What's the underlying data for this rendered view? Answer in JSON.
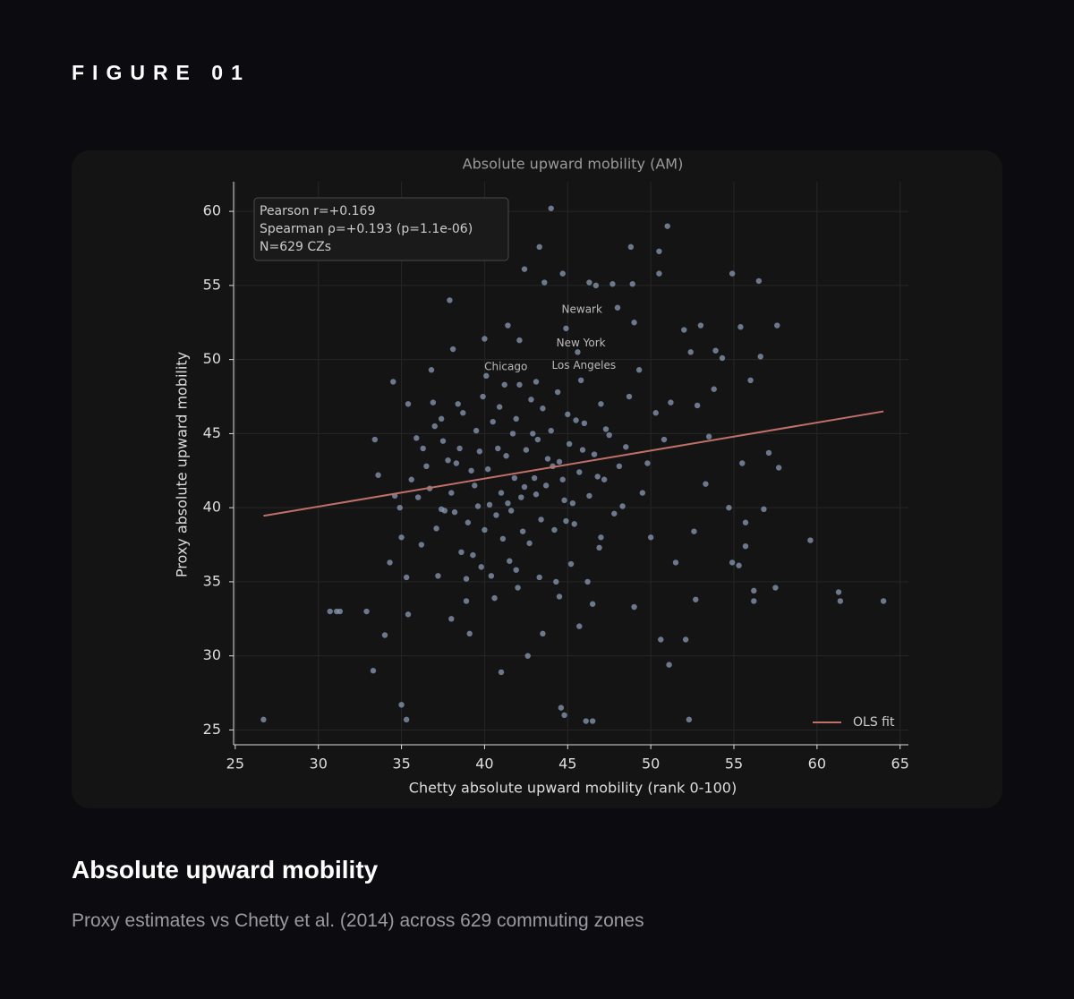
{
  "header": {
    "label": "FIGURE 01"
  },
  "chart_data": {
    "type": "scatter",
    "title": "Absolute upward mobility (AM)",
    "xlabel": "Chetty absolute upward mobility (rank 0-100)",
    "ylabel": "Proxy absolute upward mobility",
    "xlim": [
      24.9,
      65.5
    ],
    "ylim": [
      24,
      62
    ],
    "xticks": [
      25,
      30,
      35,
      40,
      45,
      50,
      55,
      60,
      65
    ],
    "yticks": [
      25,
      30,
      35,
      40,
      45,
      50,
      55,
      60
    ],
    "grid": true,
    "legend": "lower right",
    "stats": [
      "Pearson r=+0.169",
      "Spearman ρ=+0.193 (p=1.1e-06)",
      "N=629 CZs"
    ],
    "points": {
      "color": "#8a9bb5",
      "x": [
        26.7,
        30.7,
        31.1,
        31.3,
        32.9,
        33.3,
        33.4,
        33.6,
        34,
        34.3,
        34.5,
        34.6,
        34.9,
        35,
        35,
        35.3,
        35.3,
        35.4,
        35.4,
        35.6,
        35.9,
        36,
        36.2,
        36.5,
        36.8,
        37,
        37.2,
        37.4,
        37.6,
        37.9,
        38,
        38.1,
        38.3,
        38.4,
        38.6,
        38.9,
        39.1,
        39.2,
        39.5,
        39.8,
        40,
        40.3,
        40.6,
        40.8,
        41,
        41.2,
        41.4,
        41.5,
        41.8,
        42.1,
        42.3,
        42.4,
        42.6,
        42.9,
        43.1,
        43.3,
        43.5,
        43.6,
        44,
        44.1,
        44.3,
        44.6,
        44.8,
        44.7,
        44.9,
        45,
        45.3,
        45.6,
        45.7,
        45.9,
        46.1,
        46.5,
        46.3,
        46.7,
        47,
        47.3,
        47.7,
        48,
        48.3,
        48.8,
        48.9,
        49,
        49,
        49.3,
        49.8,
        50,
        50.3,
        50.5,
        50.5,
        50.6,
        50.8,
        51,
        51.1,
        51.2,
        51.5,
        52,
        52.1,
        52.3,
        52.4,
        52.6,
        52.7,
        52.8,
        53,
        53.3,
        53.5,
        53.8,
        53.9,
        54.3,
        54.7,
        54.9,
        54.9,
        55.3,
        55.4,
        55.5,
        55.7,
        55.7,
        56,
        56.2,
        56.2,
        56.5,
        56.6,
        56.8,
        57.1,
        57.5,
        57.6,
        57.7,
        59.6,
        61.3,
        61.4,
        64,
        37.5,
        38,
        38.5,
        39,
        39.4,
        39.7,
        40,
        40.2,
        40.5,
        40.7,
        41,
        41.3,
        41.6,
        41.9,
        42.2,
        42.5,
        42.7,
        43,
        43.2,
        43.4,
        43.7,
        44,
        44.2,
        44.5,
        44.8,
        45.1,
        45.4,
        45.7,
        46,
        46.3,
        46.6,
        46.9,
        47.2,
        47.5,
        47.8,
        48.1,
        38.7,
        39.3,
        40.4,
        41.1,
        42,
        42.8,
        43.5,
        44.4,
        45.2,
        46.2,
        47,
        36.7,
        37.1,
        37.8,
        38.2,
        39.9,
        40.9,
        41.7,
        42.4,
        43.8,
        44.7,
        45.5,
        46.8,
        48.5,
        36.3,
        39.6,
        41.4,
        43.1,
        44.9,
        42.1,
        40.1,
        38.9,
        41.9,
        44.5,
        46.5,
        37.4,
        48.7,
        49.5,
        36.9,
        45.8,
        43.3
      ],
      "values": [
        25.7,
        33,
        33,
        33,
        33,
        29,
        44.6,
        42.2,
        31.4,
        36.3,
        48.5,
        40.8,
        40,
        38,
        26.7,
        25.7,
        35.3,
        32.8,
        47,
        41.9,
        44.7,
        40.7,
        37.5,
        42.8,
        49.3,
        45.5,
        35.4,
        46,
        39.8,
        54,
        32.5,
        50.7,
        43,
        47,
        37,
        33.7,
        31.5,
        42.5,
        45.2,
        36,
        51.4,
        40.2,
        33.9,
        44,
        28.9,
        48.3,
        52.3,
        36.4,
        42,
        51.3,
        38.4,
        56.1,
        30,
        45,
        48.5,
        57.6,
        31.5,
        55.2,
        60.2,
        42.8,
        35,
        26.5,
        26,
        55.8,
        52.1,
        46.3,
        40.3,
        50.5,
        32,
        43.9,
        25.6,
        25.6,
        55.2,
        55,
        38,
        45.3,
        55.1,
        53.5,
        40.1,
        57.6,
        55.1,
        33.3,
        52.5,
        49.3,
        43,
        38,
        46.4,
        57.3,
        55.8,
        31.1,
        44.6,
        59,
        29.4,
        47.1,
        36.3,
        52,
        31.1,
        25.7,
        50.5,
        38.4,
        33.8,
        46.9,
        52.3,
        41.6,
        44.8,
        48,
        50.6,
        50.1,
        40,
        55.8,
        36.3,
        36.1,
        52.2,
        43,
        39,
        37.4,
        48.6,
        34.4,
        33.7,
        55.3,
        50.2,
        39.9,
        43.7,
        34.6,
        52.3,
        42.7,
        37.8,
        34.3,
        33.7,
        33.7,
        44.5,
        41,
        44,
        39,
        41.5,
        43.8,
        38.5,
        42.6,
        45.8,
        39.5,
        41,
        43.5,
        39.8,
        46,
        40.7,
        43.9,
        37.6,
        42,
        44.6,
        39.2,
        41.5,
        45.2,
        38.5,
        43.1,
        40.5,
        44.3,
        38.9,
        42.4,
        45.7,
        40.8,
        43.6,
        37.3,
        41.9,
        44.9,
        39.6,
        42.8,
        46.4,
        36.8,
        35.4,
        37.9,
        34.6,
        47.3,
        46.7,
        47.8,
        36.2,
        35,
        47,
        41.3,
        38.6,
        43.2,
        39.7,
        47.5,
        46.8,
        45,
        41.4,
        43.3,
        41.9,
        45.9,
        42.1,
        44.1,
        44,
        40.1,
        40.3,
        40.9,
        39.1,
        48.3,
        48.9,
        35.2,
        35.8,
        34,
        33.5,
        39.9,
        47.5,
        41,
        47.1,
        48.6,
        35.3
      ]
    },
    "fit": {
      "name": "OLS fit",
      "color": "#c0706a",
      "x": [
        26.7,
        64
      ],
      "values": [
        39.45,
        46.5
      ]
    },
    "annotations": [
      {
        "text": "Newark",
        "x": 45.86,
        "y": 53.37
      },
      {
        "text": "New York",
        "x": 45.8,
        "y": 51.1
      },
      {
        "text": "Los Angeles",
        "x": 45.97,
        "y": 49.6
      },
      {
        "text": "Chicago",
        "x": 41.28,
        "y": 49.5
      }
    ]
  },
  "caption": {
    "heading": "Absolute upward mobility",
    "text": "Proxy estimates vs Chetty et al. (2014) across 629 commuting zones"
  }
}
